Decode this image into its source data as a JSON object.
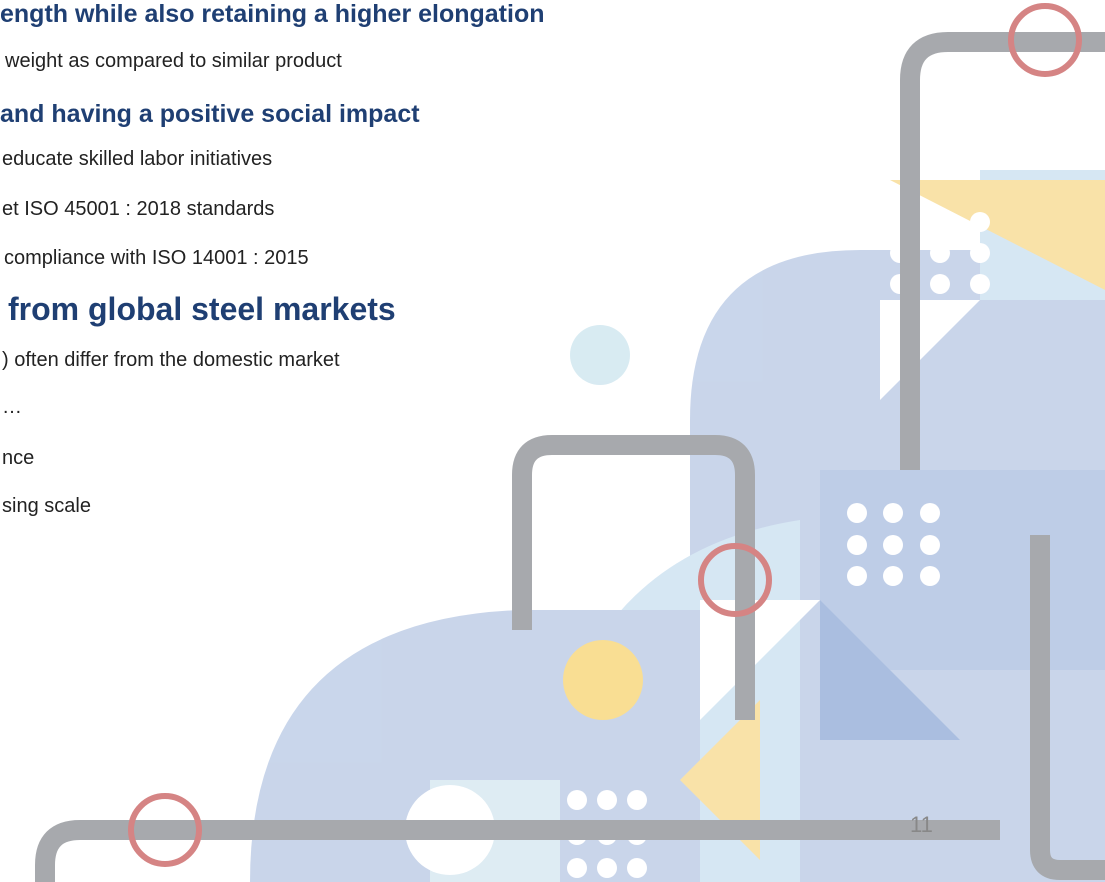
{
  "sections": [
    {
      "heading": "ength while also retaining a higher elongation",
      "bullets": [
        "weight as compared to similar product"
      ]
    },
    {
      "heading": "and having a positive social impact",
      "bullets": [
        "educate skilled labor initiatives",
        "et ISO 45001 : 2018 standards",
        "compliance with ISO 14001 : 2015"
      ]
    },
    {
      "heading": "from global steel markets",
      "bullets": [
        ") often differ from the domestic market",
        "…",
        "nce",
        "sing scale"
      ]
    }
  ],
  "page_number": "11"
}
